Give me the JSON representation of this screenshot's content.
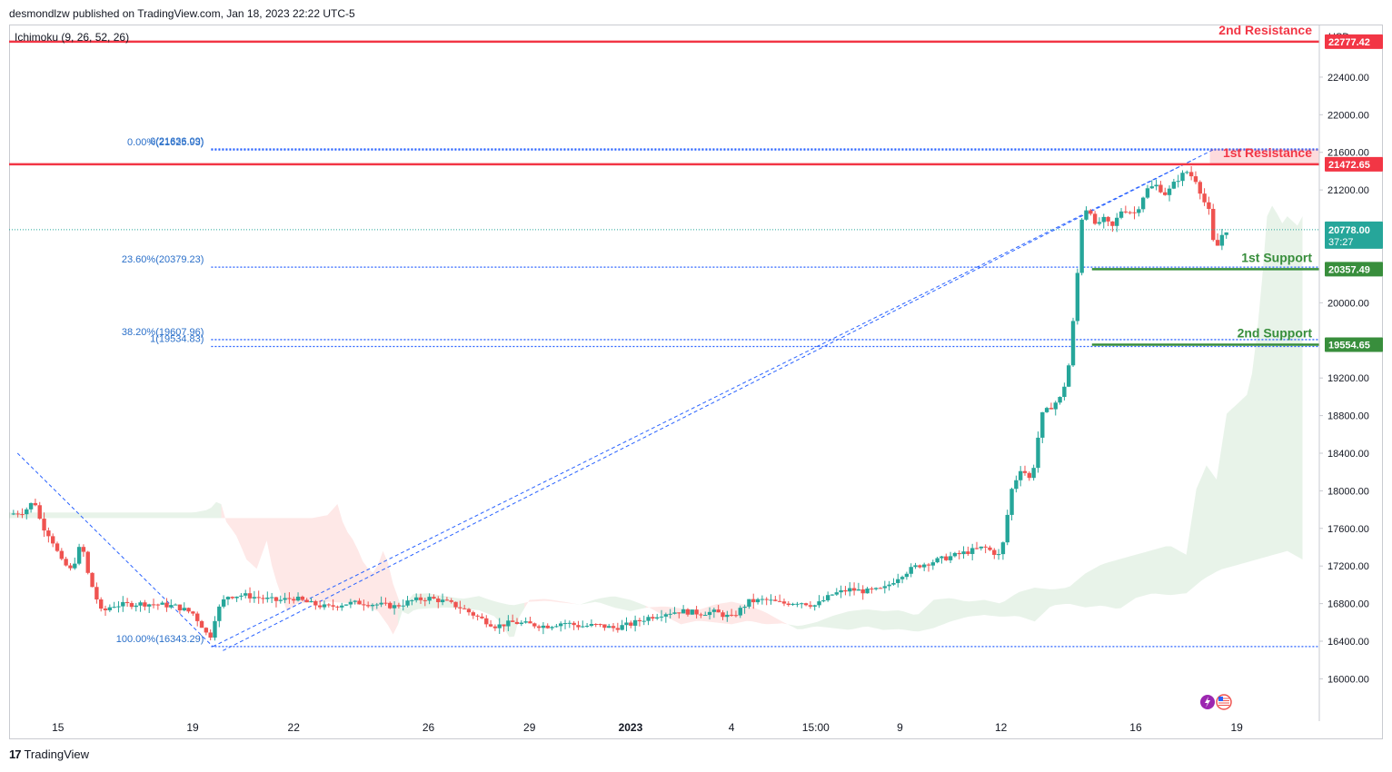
{
  "header": {
    "published": "desmondlzw published on TradingView.com, Jan 18, 2023 22:22 UTC-5"
  },
  "indicator": "Ichimoku (9, 26, 52, 26)",
  "footer": {
    "brand": "TradingView"
  },
  "colors": {
    "up": "#26a69a",
    "down": "#ef5350",
    "resistance": "#f23645",
    "support": "#388e3c",
    "fib": "#2962ff",
    "fib_text": "#2a6fc9"
  },
  "chart_data": {
    "type": "candlestick",
    "currency": "USD",
    "y_ticks": [
      22400,
      22000,
      21600,
      21200,
      20800,
      20400,
      20000,
      19600,
      19200,
      18800,
      18400,
      18000,
      17600,
      17200,
      16800,
      16400,
      16000
    ],
    "y_tick_labels": [
      "22400.00",
      "22000.00",
      "21600.00",
      "21200.00",
      "",
      "",
      "20000.00",
      "",
      "19200.00",
      "18800.00",
      "18400.00",
      "18000.00",
      "17600.00",
      "17200.00",
      "16800.00",
      "16400.00",
      "16000.00"
    ],
    "ylim": [
      15550,
      22950
    ],
    "x_labels": [
      {
        "label": "15",
        "t": 0
      },
      {
        "label": "19",
        "t": 4
      },
      {
        "label": "22",
        "t": 7
      },
      {
        "label": "26",
        "t": 11
      },
      {
        "label": "29",
        "t": 14
      },
      {
        "label": "2023",
        "t": 17
      },
      {
        "label": "4",
        "t": 20
      },
      {
        "label": "15:00",
        "t": 22.5
      },
      {
        "label": "9",
        "t": 25
      },
      {
        "label": "12",
        "t": 28
      },
      {
        "label": "16",
        "t": 32
      },
      {
        "label": "19",
        "t": 35
      }
    ],
    "xlim": [
      -1.45,
      37.45
    ],
    "levels": [
      {
        "name": "2nd Resistance",
        "value": 22777.42,
        "label": "22777.42",
        "kind": "resistance"
      },
      {
        "name": "1st Resistance",
        "value": 21472.65,
        "label": "21472.65",
        "kind": "resistance"
      },
      {
        "name": "1st Support",
        "value": 20357.49,
        "label": "20357.49",
        "kind": "support"
      },
      {
        "name": "2nd Support",
        "value": 19554.65,
        "label": "19554.65",
        "kind": "support"
      }
    ],
    "last_price": {
      "value": 20778.0,
      "label": "20778.00",
      "countdown": "37:27"
    },
    "fib_retracement": [
      {
        "label": "0.00%(21625.93)",
        "value": 21625.93
      },
      {
        "label": "23.60%(20379.23)",
        "value": 20379.23
      },
      {
        "label": "38.20%(19607.96)",
        "value": 19607.96
      },
      {
        "label": "100.00%(16343.29)",
        "value": 16343.29
      }
    ],
    "fib_extension": [
      {
        "label": "0(21636.09)",
        "value": 21636.09
      },
      {
        "label": "1(19534.83)",
        "value": 19534.83
      }
    ],
    "price_path": [
      [
        -1.45,
        17750
      ],
      [
        -1.0,
        17780
      ],
      [
        -0.7,
        17900
      ],
      [
        -0.5,
        17650
      ],
      [
        -0.2,
        17500
      ],
      [
        0.1,
        17250
      ],
      [
        0.4,
        17150
      ],
      [
        0.7,
        17450
      ],
      [
        0.9,
        17100
      ],
      [
        1.1,
        16900
      ],
      [
        1.3,
        16700
      ],
      [
        1.6,
        16780
      ],
      [
        2,
        16790
      ],
      [
        2.5,
        16800
      ],
      [
        3,
        16790
      ],
      [
        3.5,
        16770
      ],
      [
        4,
        16700
      ],
      [
        4.3,
        16550
      ],
      [
        4.5,
        16420
      ],
      [
        4.7,
        16700
      ],
      [
        5,
        16880
      ],
      [
        5.5,
        16890
      ],
      [
        6,
        16860
      ],
      [
        6.5,
        16830
      ],
      [
        7,
        16860
      ],
      [
        7.5,
        16800
      ],
      [
        8,
        16760
      ],
      [
        8.5,
        16800
      ],
      [
        9,
        16810
      ],
      [
        9.5,
        16790
      ],
      [
        10,
        16770
      ],
      [
        10.5,
        16830
      ],
      [
        11,
        16860
      ],
      [
        11.5,
        16820
      ],
      [
        12,
        16750
      ],
      [
        12.5,
        16650
      ],
      [
        13,
        16560
      ],
      [
        13.5,
        16600
      ],
      [
        14,
        16580
      ],
      [
        14.5,
        16560
      ],
      [
        15,
        16600
      ],
      [
        15.5,
        16560
      ],
      [
        16,
        16570
      ],
      [
        16.5,
        16540
      ],
      [
        17,
        16580
      ],
      [
        17.5,
        16650
      ],
      [
        18,
        16700
      ],
      [
        18.5,
        16720
      ],
      [
        19,
        16700
      ],
      [
        19.5,
        16710
      ],
      [
        20,
        16650
      ],
      [
        20.5,
        16820
      ],
      [
        21,
        16840
      ],
      [
        21.5,
        16800
      ],
      [
        22,
        16820
      ],
      [
        22.5,
        16780
      ],
      [
        23,
        16900
      ],
      [
        23.5,
        16950
      ],
      [
        24,
        16930
      ],
      [
        24.5,
        16950
      ],
      [
        25,
        17100
      ],
      [
        25.5,
        17200
      ],
      [
        26,
        17250
      ],
      [
        26.5,
        17300
      ],
      [
        27,
        17350
      ],
      [
        27.5,
        17400
      ],
      [
        28,
        17300
      ],
      [
        28.3,
        18000
      ],
      [
        28.6,
        18250
      ],
      [
        28.9,
        18100
      ],
      [
        29.2,
        18800
      ],
      [
        29.5,
        18900
      ],
      [
        29.8,
        19000
      ],
      [
        30,
        19300
      ],
      [
        30.2,
        20000
      ],
      [
        30.4,
        20900
      ],
      [
        30.6,
        21050
      ],
      [
        30.8,
        20800
      ],
      [
        31,
        20900
      ],
      [
        31.3,
        20800
      ],
      [
        31.6,
        21000
      ],
      [
        32,
        20950
      ],
      [
        32.3,
        21200
      ],
      [
        32.6,
        21250
      ],
      [
        32.9,
        21150
      ],
      [
        33.2,
        21300
      ],
      [
        33.5,
        21400
      ],
      [
        33.8,
        21300
      ],
      [
        34,
        21100
      ],
      [
        34.2,
        20950
      ],
      [
        34.35,
        20500
      ],
      [
        34.5,
        20700
      ],
      [
        34.7,
        20778
      ]
    ],
    "projection": {
      "from": 37.0,
      "value": 20778
    }
  }
}
